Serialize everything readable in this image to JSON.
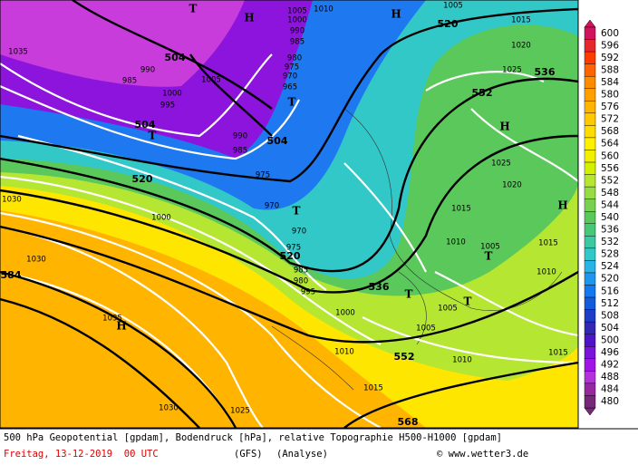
{
  "map": {
    "geopotential_labels": [
      "504",
      "504",
      "504",
      "520",
      "520",
      "520",
      "536",
      "536",
      "552",
      "552",
      "568",
      "584"
    ],
    "pressure_labels": [
      "1035",
      "1005",
      "1010",
      "1000",
      "990",
      "985",
      "980",
      "975",
      "970",
      "965",
      "990",
      "985",
      "1000",
      "995",
      "1005",
      "990",
      "985",
      "975",
      "970",
      "970",
      "975",
      "985",
      "980",
      "995",
      "1030",
      "1000",
      "1030",
      "1035",
      "1030",
      "1025",
      "1015",
      "1020",
      "1025",
      "1025",
      "1020",
      "1015",
      "1010",
      "1005",
      "1015",
      "1010",
      "1005",
      "1000",
      "1005",
      "1010",
      "1010",
      "1015",
      "1015",
      "1005"
    ],
    "centers": [
      "T",
      "H",
      "H",
      "T",
      "T",
      "T",
      "H",
      "H",
      "T",
      "T",
      "T",
      "H"
    ]
  },
  "colorbar": {
    "levels": [
      600,
      596,
      592,
      588,
      584,
      580,
      576,
      572,
      568,
      564,
      560,
      556,
      552,
      548,
      544,
      540,
      536,
      532,
      528,
      524,
      520,
      516,
      512,
      508,
      504,
      500,
      496,
      492,
      488,
      484,
      480
    ],
    "colors": [
      "#d2145f",
      "#e6282d",
      "#ff3c00",
      "#ff6400",
      "#ff8c00",
      "#ffa000",
      "#ffb400",
      "#ffc800",
      "#ffdc00",
      "#fff000",
      "#f0f000",
      "#d2f000",
      "#b4e632",
      "#96dc46",
      "#78d250",
      "#5ac85a",
      "#46c878",
      "#3cc8a0",
      "#32c8c8",
      "#28b4e6",
      "#1e96f0",
      "#1478f0",
      "#145adc",
      "#1e3cc8",
      "#3228b4",
      "#5014c8",
      "#7814dc",
      "#a014e6",
      "#b432dc",
      "#9628a0",
      "#782878"
    ]
  },
  "footer": {
    "title": "500 hPa Geopotential [gpdam], Bodendruck [hPa], relative Topographie H500-H1000 [gpdam]",
    "date": "Freitag, 13-12-2019  00 UTC",
    "model": "(GFS)",
    "run": "(Analyse)",
    "credit": "© www.wetter3.de"
  }
}
